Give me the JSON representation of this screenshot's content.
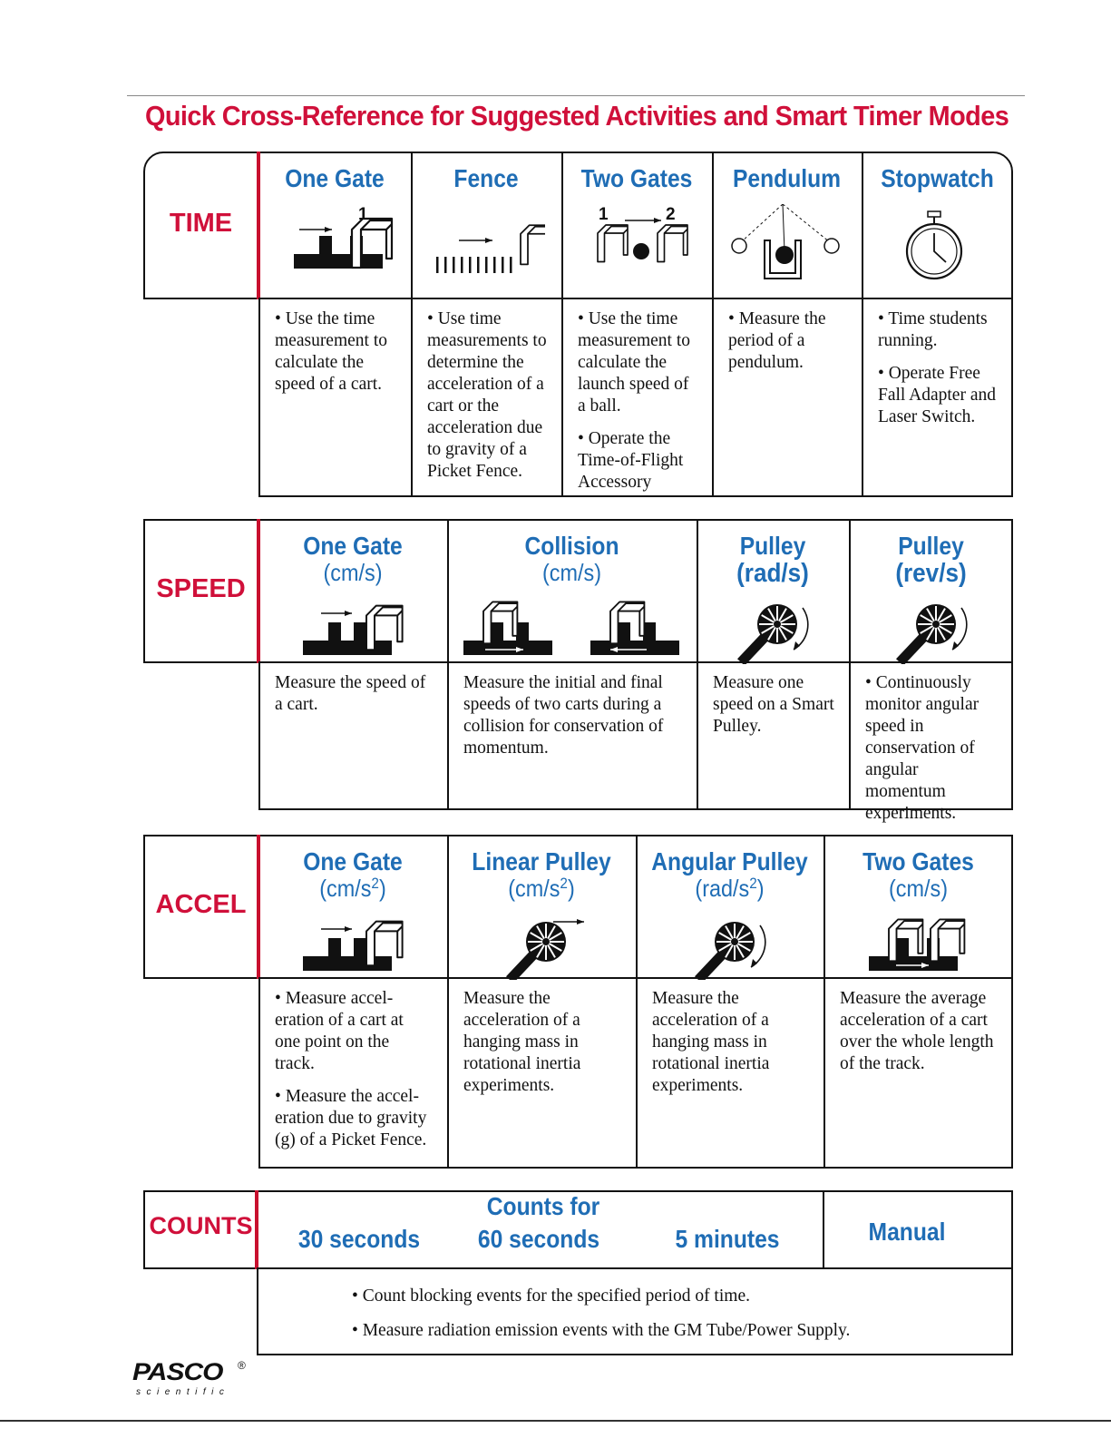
{
  "title": "Quick Cross-Reference for Suggested Activities and Smart Timer Modes",
  "sections": [
    {
      "label": "TIME",
      "modes": [
        {
          "name": "One Gate",
          "icon_labels": [
            "1"
          ]
        },
        {
          "name": "Fence"
        },
        {
          "name": "Two Gates",
          "icon_labels": [
            "1",
            "2"
          ]
        },
        {
          "name": "Pendulum"
        },
        {
          "name": "Stopwatch"
        }
      ],
      "descriptions": [
        [
          "• Use the time measurement to calculate the speed of a cart."
        ],
        [
          "• Use time measurements to determine the acceleration of a cart or the acceleration due to gravity of a Picket Fence."
        ],
        [
          "• Use the time measurement to calculate the launch speed of a ball.",
          "• Operate the Time-of-Flight Accessory"
        ],
        [
          "• Measure the period of a pendulum."
        ],
        [
          "• Time students running.",
          "• Operate Free Fall Adapter and Laser Switch."
        ]
      ]
    },
    {
      "label": "SPEED",
      "modes": [
        {
          "name": "One Gate",
          "unit": "(cm/s)"
        },
        {
          "name": "Collision",
          "unit": "(cm/s)"
        },
        {
          "name": "Pulley",
          "unit": "(rad/s)"
        },
        {
          "name": "Pulley",
          "unit": "(rev/s)"
        }
      ],
      "descriptions": [
        [
          "Measure the speed of a cart."
        ],
        [
          "Measure the initial and final speeds of two carts during a collision for conservation of momentum."
        ],
        [
          "Measure one speed on a Smart Pulley."
        ],
        [
          "• Continuously monitor angular speed in conservation of angular momentum experiments."
        ]
      ]
    },
    {
      "label": "ACCEL",
      "modes": [
        {
          "name": "One Gate",
          "unit": {
            "text": "(cm/s",
            "sup": "2",
            "end": ")"
          }
        },
        {
          "name": "Linear Pulley",
          "unit": {
            "text": "(cm/s",
            "sup": "2",
            "end": ")"
          }
        },
        {
          "name": "Angular Pulley",
          "unit": {
            "text": "(rad/s",
            "sup": "2",
            "end": ")"
          }
        },
        {
          "name": "Two Gates",
          "unit": "(cm/s)"
        }
      ],
      "descriptions": [
        [
          "• Measure accel-eration of a cart at one point on the track.",
          "• Measure the accel-eration due to gravity (g) of a Picket Fence."
        ],
        [
          "Measure the acceleration of a hanging mass in rotational inertia experiments."
        ],
        [
          "Measure the acceleration of a hanging mass in rotational inertia experiments."
        ],
        [
          "Measure the average acceleration of a cart over the whole length of the track."
        ]
      ]
    }
  ],
  "counts": {
    "label": "COUNTS",
    "heading": "Counts for",
    "options": [
      "30 seconds",
      "60 seconds",
      "5 minutes"
    ],
    "manual": "Manual",
    "descriptions": [
      "• Count blocking events for the specified period of time.",
      "• Measure radiation emission events with the GM Tube/Power Supply."
    ]
  },
  "footer": {
    "logo": "PASCO",
    "tagline": "scientific",
    "mark": "®"
  }
}
